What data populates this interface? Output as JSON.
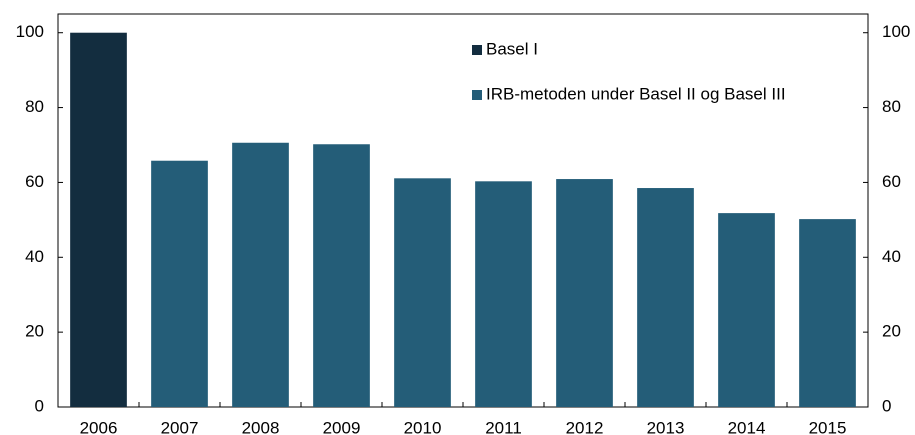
{
  "chart_data": {
    "type": "bar",
    "categories": [
      "2006",
      "2007",
      "2008",
      "2009",
      "2010",
      "2011",
      "2012",
      "2013",
      "2014",
      "2015"
    ],
    "series": [
      {
        "name": "Basel I",
        "color": "#132d3f",
        "values": [
          100,
          null,
          null,
          null,
          null,
          null,
          null,
          null,
          null,
          null
        ]
      },
      {
        "name": "IRB-metoden under Basel II og Basel III",
        "color": "#245d78",
        "values": [
          null,
          65.8,
          70.6,
          70.2,
          61.1,
          60.3,
          60.9,
          58.5,
          51.8,
          50.2
        ]
      }
    ],
    "ylim": [
      0,
      105
    ],
    "yticks": [
      0,
      20,
      40,
      60,
      80,
      100
    ],
    "y2lim": [
      0,
      105
    ],
    "y2ticks": [
      0,
      20,
      40,
      60,
      80,
      100
    ],
    "grid": false,
    "legend": "top-center"
  }
}
